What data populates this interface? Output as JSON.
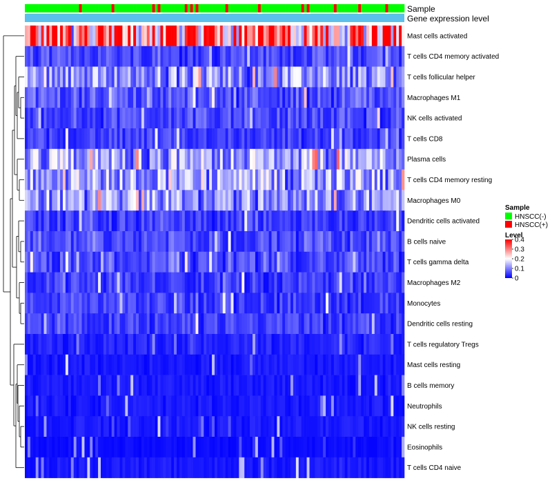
{
  "chart_data": {
    "type": "heatmap",
    "annotation_tracks": [
      "Sample",
      "Gene expression level"
    ],
    "rows": [
      "Mast cells activated",
      "T cells CD4 memory activated",
      "T cells follicular helper",
      "Macrophages M1",
      "NK cells activated",
      "T cells CD8",
      "Plasma cells",
      "T cells CD4 memory resting",
      "Macrophages M0",
      "Dendritic cells activated",
      "B cells naive",
      "T cells gamma delta",
      "Macrophages M2",
      "Monocytes",
      "Dendritic cells resting",
      "T cells regulatory  Tregs",
      "Mast cells resting",
      "B cells memory",
      "Neutrophils",
      "NK cells resting",
      "Eosinophils",
      "T cells CD4 naive"
    ],
    "row_mean_levels": [
      0.33,
      0.06,
      0.12,
      0.07,
      0.06,
      0.05,
      0.13,
      0.13,
      0.12,
      0.05,
      0.06,
      0.06,
      0.05,
      0.05,
      0.05,
      0.03,
      0.02,
      0.02,
      0.02,
      0.02,
      0.01,
      0.02
    ],
    "column_count": 140,
    "sample_fraction_positive": 0.17,
    "legend": {
      "sample_title": "Sample",
      "sample_entries": [
        {
          "label": "HNSCC(-)",
          "color": "#00ff00"
        },
        {
          "label": "HNSCC(+)",
          "color": "#ff0000"
        }
      ],
      "level_title": "Level",
      "level_ticks": [
        "0.4",
        "0.3",
        "0.2",
        "0.1",
        "0"
      ],
      "level_range": [
        0,
        0.4
      ],
      "color_low": "#0000ff",
      "color_mid": "#ffffff",
      "color_high": "#ff0000"
    },
    "gene_expression_color": "#5bc0eb"
  }
}
